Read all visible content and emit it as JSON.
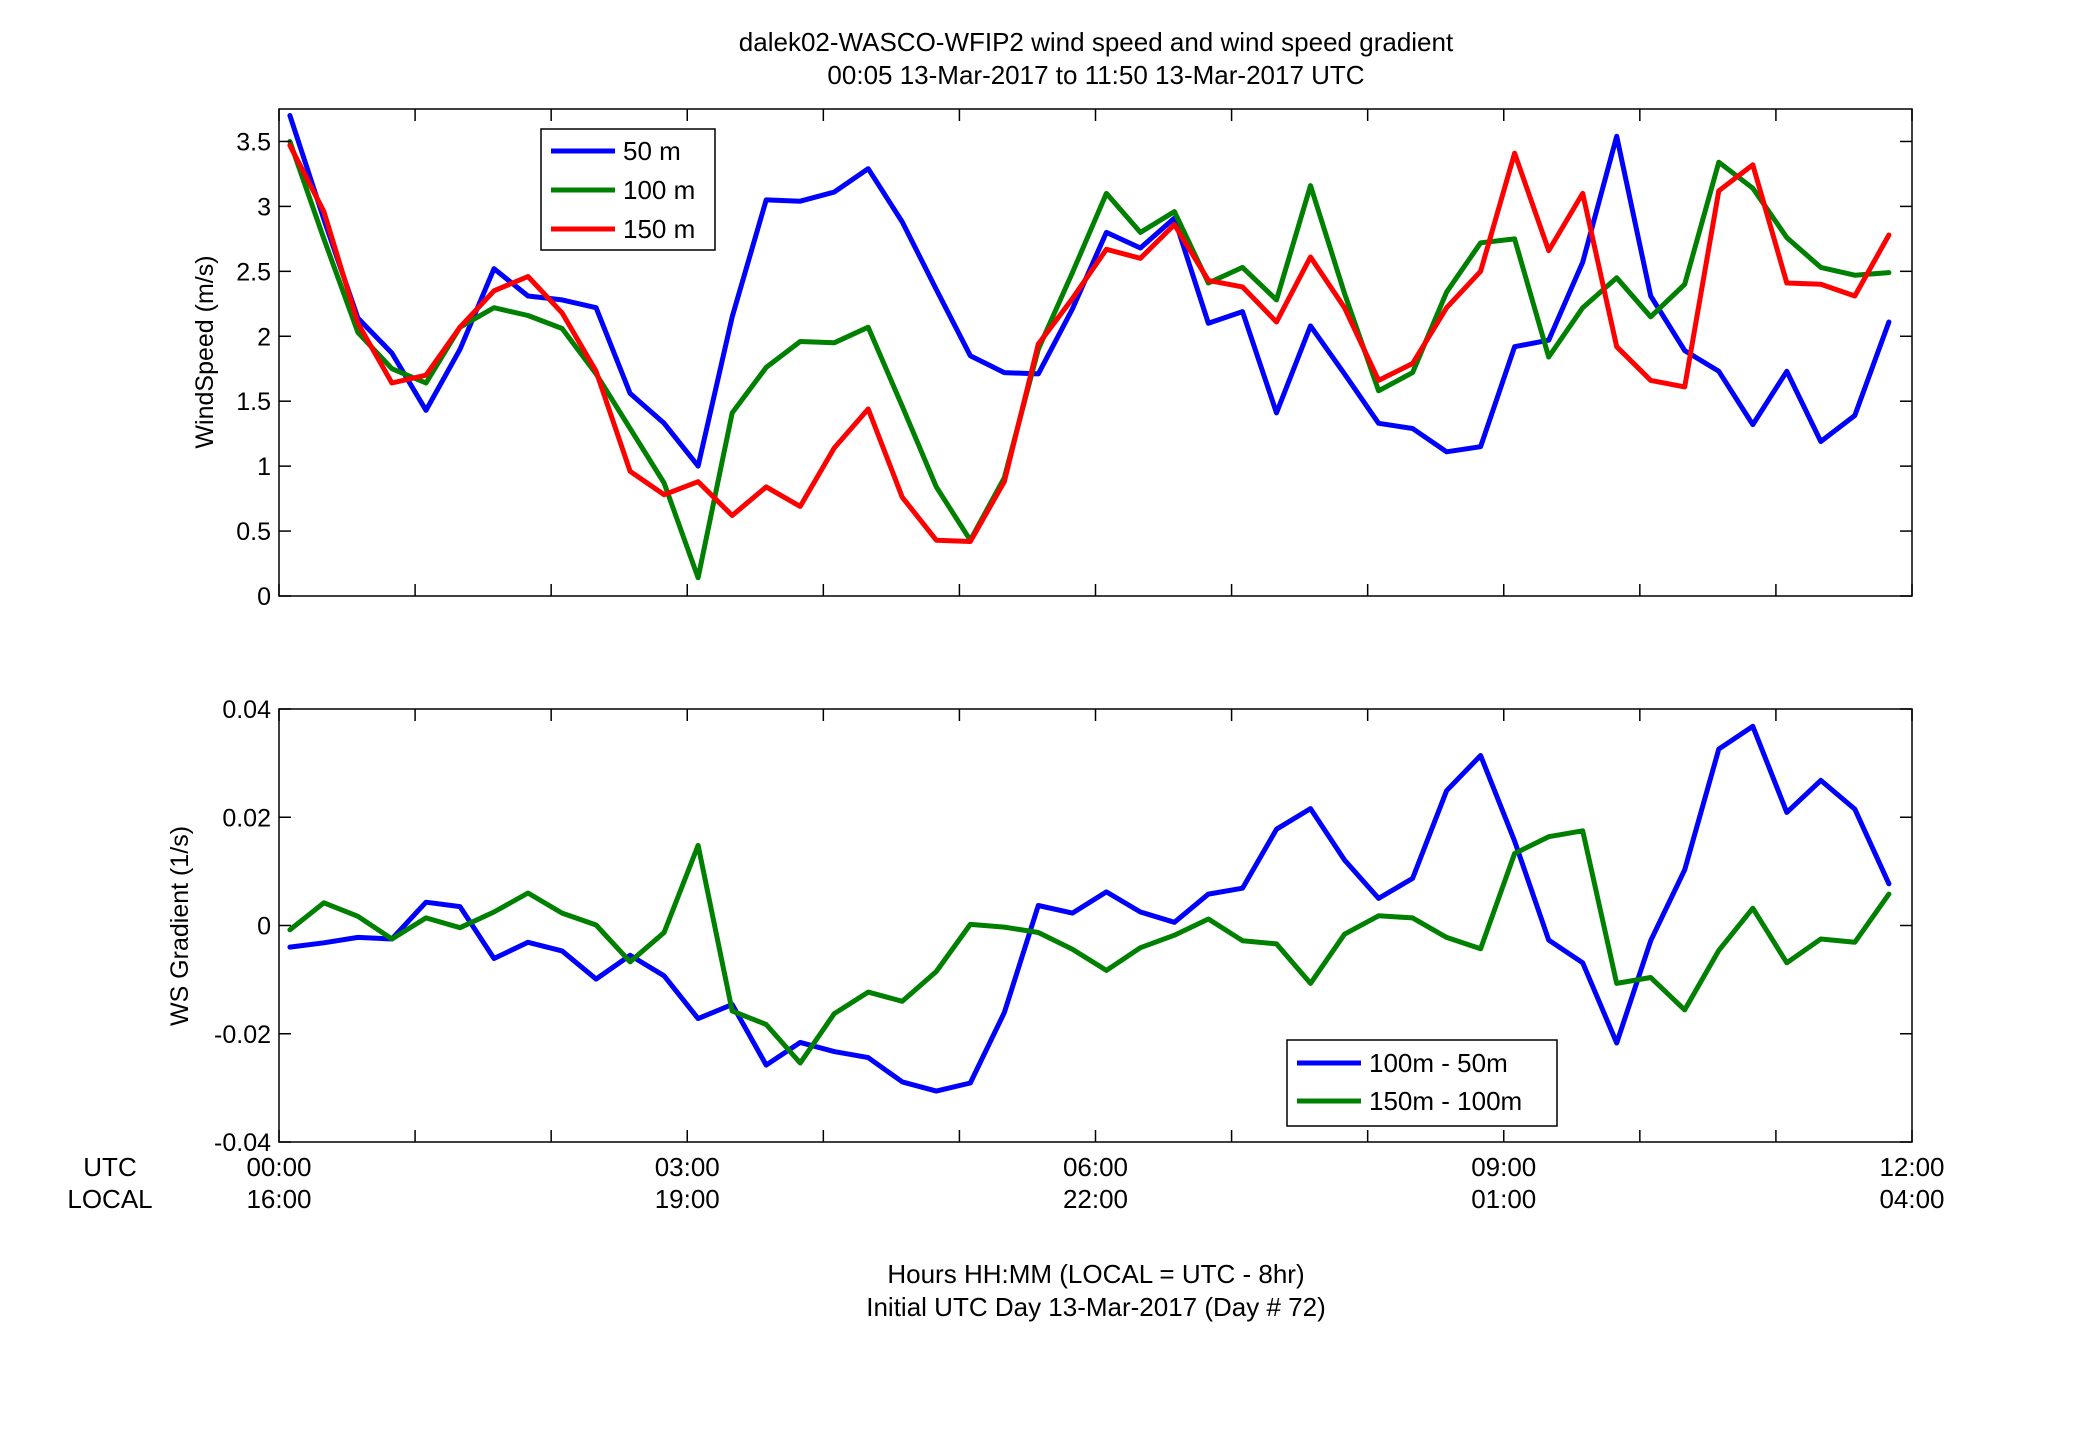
{
  "figure": {
    "title_line1": "dalek02-WASCO-WFIP2  wind speed and wind speed gradient",
    "title_line2": "00:05 13-Mar-2017 to 11:50 13-Mar-2017  UTC",
    "row_label_utc": "UTC",
    "row_label_local": "LOCAL",
    "xlabel_line1": "Hours HH:MM  (LOCAL = UTC - 8hr)",
    "xlabel_line2": "Initial UTC Day 13-Mar-2017 (Day # 72)",
    "x_ticks_utc": [
      "00:00",
      "03:00",
      "06:00",
      "09:00",
      "12:00"
    ],
    "x_ticks_local": [
      "16:00",
      "19:00",
      "22:00",
      "01:00",
      "04:00"
    ]
  },
  "chart_data": [
    {
      "type": "line",
      "ylabel": "WindSpeed (m/s)",
      "xlim": [
        0,
        12
      ],
      "ylim": [
        0,
        3.75
      ],
      "yticks": [
        0,
        0.5,
        1,
        1.5,
        2,
        2.5,
        3,
        3.5
      ],
      "ytick_labels": [
        "0",
        "0.5",
        "1",
        "1.5",
        "2",
        "2.5",
        "3",
        "3.5"
      ],
      "legend_position": "top-left",
      "grid": false,
      "x_hours": [
        0.08,
        0.33,
        0.58,
        0.83,
        1.08,
        1.33,
        1.58,
        1.83,
        2.08,
        2.33,
        2.58,
        2.83,
        3.08,
        3.33,
        3.58,
        3.83,
        4.08,
        4.33,
        4.58,
        4.83,
        5.08,
        5.33,
        5.58,
        5.83,
        6.08,
        6.33,
        6.58,
        6.83,
        7.08,
        7.33,
        7.58,
        7.83,
        8.08,
        8.33,
        8.58,
        8.83,
        9.08,
        9.33,
        9.58,
        9.83,
        10.08,
        10.33,
        10.58,
        10.83,
        11.08,
        11.33,
        11.58,
        11.83
      ],
      "series": [
        {
          "name": "50 m",
          "color": "#0000ff",
          "values": [
            3.7,
            2.9,
            2.14,
            1.87,
            1.43,
            1.9,
            2.52,
            2.31,
            2.28,
            2.22,
            1.56,
            1.33,
            1.0,
            2.15,
            3.05,
            3.04,
            3.11,
            3.29,
            2.88,
            2.36,
            1.85,
            1.72,
            1.71,
            2.21,
            2.8,
            2.68,
            2.91,
            2.1,
            2.19,
            1.41,
            2.08,
            1.71,
            1.33,
            1.29,
            1.11,
            1.15,
            1.92,
            1.97,
            2.57,
            3.54,
            2.31,
            1.89,
            1.73,
            1.32,
            1.73,
            1.19,
            1.39,
            2.11
          ]
        },
        {
          "name": "100 m",
          "color": "#008000",
          "values": [
            3.5,
            2.75,
            2.03,
            1.75,
            1.64,
            2.07,
            2.22,
            2.16,
            2.06,
            1.71,
            1.29,
            0.87,
            0.14,
            1.41,
            1.76,
            1.96,
            1.95,
            2.07,
            1.46,
            0.84,
            0.43,
            0.91,
            1.9,
            2.49,
            3.1,
            2.8,
            2.96,
            2.41,
            2.53,
            2.28,
            3.16,
            2.33,
            1.58,
            1.72,
            2.34,
            2.72,
            2.75,
            1.84,
            2.22,
            2.45,
            2.15,
            2.4,
            3.34,
            3.14,
            2.76,
            2.53,
            2.47,
            2.49
          ]
        },
        {
          "name": "150 m",
          "color": "#ff0000",
          "values": [
            3.47,
            2.96,
            2.1,
            1.64,
            1.7,
            2.07,
            2.35,
            2.46,
            2.18,
            1.73,
            0.96,
            0.78,
            0.88,
            0.62,
            0.84,
            0.69,
            1.14,
            1.44,
            0.76,
            0.43,
            0.42,
            0.88,
            1.94,
            2.29,
            2.67,
            2.6,
            2.86,
            2.43,
            2.38,
            2.11,
            2.61,
            2.22,
            1.66,
            1.79,
            2.22,
            2.5,
            3.41,
            2.66,
            3.1,
            1.92,
            1.66,
            1.61,
            3.12,
            3.32,
            2.41,
            2.4,
            2.31,
            2.78
          ]
        }
      ]
    },
    {
      "type": "line",
      "ylabel": "WS Gradient (1/s)",
      "xlim": [
        0,
        12
      ],
      "ylim": [
        -0.04,
        0.04
      ],
      "yticks": [
        -0.04,
        -0.02,
        0,
        0.02,
        0.04
      ],
      "ytick_labels": [
        "-0.04",
        "-0.02",
        "0",
        "0.02",
        "0.04"
      ],
      "legend_position": "bottom-right",
      "grid": false,
      "x_hours": [
        0.08,
        0.33,
        0.58,
        0.83,
        1.08,
        1.33,
        1.58,
        1.83,
        2.08,
        2.33,
        2.58,
        2.83,
        3.08,
        3.33,
        3.58,
        3.83,
        4.08,
        4.33,
        4.58,
        4.83,
        5.08,
        5.33,
        5.58,
        5.83,
        6.08,
        6.33,
        6.58,
        6.83,
        7.08,
        7.33,
        7.58,
        7.83,
        8.08,
        8.33,
        8.58,
        8.83,
        9.08,
        9.33,
        9.58,
        9.83,
        10.08,
        10.33,
        10.58,
        10.83,
        11.08,
        11.33,
        11.58,
        11.83
      ],
      "series": [
        {
          "name": "100m - 50m",
          "color": "#0000ff",
          "values": [
            -0.004,
            -0.0032,
            -0.0022,
            -0.0025,
            0.0043,
            0.0035,
            -0.0061,
            -0.0031,
            -0.0047,
            -0.0099,
            -0.0055,
            -0.0093,
            -0.0172,
            -0.0146,
            -0.0258,
            -0.0216,
            -0.0233,
            -0.0244,
            -0.0289,
            -0.0306,
            -0.0291,
            -0.0161,
            0.0037,
            0.0023,
            0.0062,
            0.0025,
            0.0006,
            0.0058,
            0.0069,
            0.0178,
            0.0216,
            0.0121,
            0.005,
            0.0087,
            0.0249,
            0.0314,
            0.0156,
            -0.0027,
            -0.0069,
            -0.0217,
            -0.0028,
            0.0103,
            0.0326,
            0.0368,
            0.0209,
            0.0268,
            0.0215,
            0.0077
          ]
        },
        {
          "name": "150m - 100m",
          "color": "#008000",
          "values": [
            -0.0008,
            0.0042,
            0.0017,
            -0.0025,
            0.0014,
            -0.0004,
            0.0025,
            0.006,
            0.0023,
            0.0001,
            -0.0067,
            -0.0013,
            0.0148,
            -0.0158,
            -0.0183,
            -0.0254,
            -0.0163,
            -0.0123,
            -0.014,
            -0.0085,
            0.0002,
            -0.0003,
            -0.0013,
            -0.0044,
            -0.0083,
            -0.0041,
            -0.0018,
            0.0012,
            -0.0028,
            -0.0034,
            -0.0107,
            -0.0016,
            0.0018,
            0.0014,
            -0.0022,
            -0.0043,
            0.0133,
            0.0164,
            0.0175,
            -0.0107,
            -0.0096,
            -0.0156,
            -0.0046,
            0.0032,
            -0.0069,
            -0.0025,
            -0.0031,
            0.0058
          ]
        }
      ]
    }
  ]
}
